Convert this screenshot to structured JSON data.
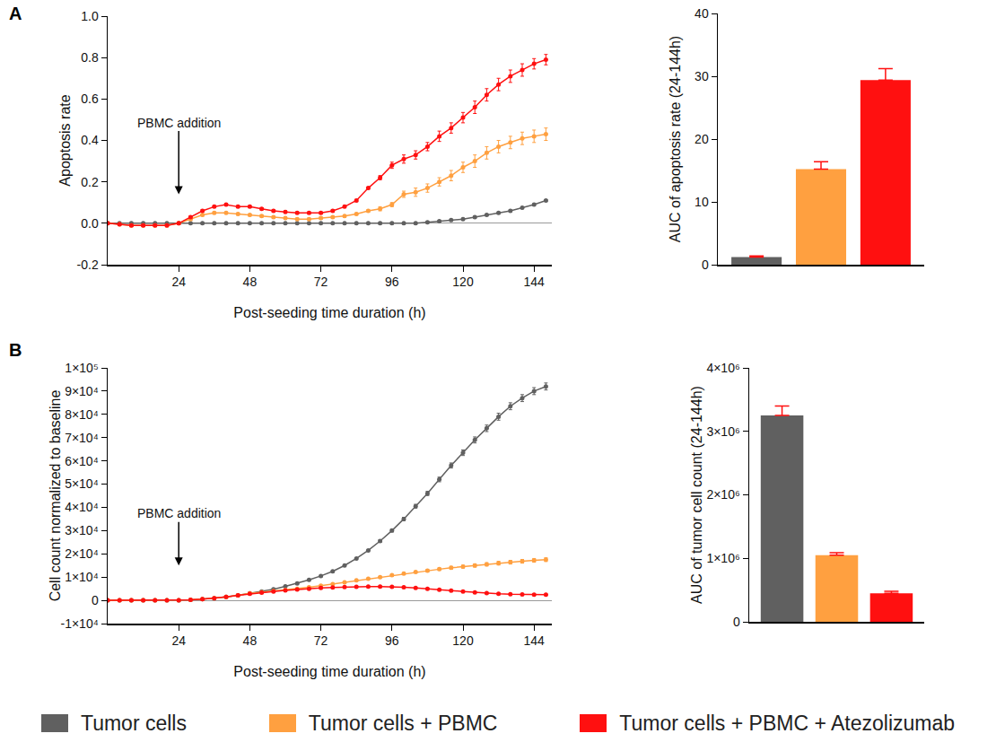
{
  "panels": [
    "A",
    "B"
  ],
  "chart_data": [
    {
      "type": "line",
      "marker": "circle",
      "line_style": "solid",
      "grid": false,
      "legend": "bottom",
      "x_label": "Post-seeding time duration (h)",
      "y_label": "Apoptosis rate",
      "xlim": [
        0,
        150
      ],
      "xticks": [
        24,
        48,
        72,
        96,
        120,
        144
      ],
      "ylim": [
        -0.2,
        1.0
      ],
      "yticks": [
        -0.2,
        {
          "value": 0,
          "label": "0.0"
        },
        0.2,
        0.4,
        0.6,
        0.8,
        {
          "value": 1,
          "label": "1.0"
        }
      ],
      "annotations": [
        {
          "text": "PBMC addition",
          "x": 24,
          "y": 0.14
        }
      ],
      "x": [
        0,
        4,
        8,
        12,
        16,
        20,
        24,
        28,
        32,
        36,
        40,
        44,
        48,
        52,
        56,
        60,
        64,
        68,
        72,
        76,
        80,
        84,
        88,
        92,
        96,
        100,
        104,
        108,
        112,
        116,
        120,
        124,
        128,
        132,
        136,
        140,
        144,
        148
      ],
      "series": [
        {
          "name": "Tumor cells",
          "color": "#606060",
          "values": [
            0,
            0,
            0,
            0,
            0,
            0,
            0,
            0,
            0,
            0,
            0,
            0,
            0,
            0,
            0,
            0,
            0,
            0,
            0,
            0,
            0,
            0,
            0,
            0,
            0,
            0,
            0,
            0.005,
            0.01,
            0.015,
            0.02,
            0.03,
            0.04,
            0.05,
            0.06,
            0.075,
            0.09,
            0.11
          ],
          "errors": [
            0.002,
            0.002,
            0.002,
            0.002,
            0.002,
            0.002,
            0.002,
            0.002,
            0.002,
            0.002,
            0.002,
            0.002,
            0.002,
            0.002,
            0.002,
            0.002,
            0.002,
            0.002,
            0.002,
            0.002,
            0.002,
            0.002,
            0.002,
            0.004,
            0.004,
            0.004,
            0.004,
            0.004,
            0.004,
            0.004,
            0.004,
            0.004,
            0.004,
            0.004,
            0.004,
            0.004,
            0.004,
            0.004
          ]
        },
        {
          "name": "Tumor cells + PBMC",
          "color": "#ffa040",
          "values": [
            0,
            -0.005,
            -0.01,
            -0.01,
            -0.01,
            -0.01,
            0,
            0.02,
            0.04,
            0.05,
            0.05,
            0.045,
            0.04,
            0.035,
            0.03,
            0.025,
            0.02,
            0.02,
            0.025,
            0.03,
            0.035,
            0.045,
            0.06,
            0.07,
            0.09,
            0.14,
            0.15,
            0.17,
            0.2,
            0.23,
            0.27,
            0.3,
            0.34,
            0.37,
            0.39,
            0.41,
            0.42,
            0.43
          ],
          "errors": [
            0.005,
            0.005,
            0.005,
            0.005,
            0.005,
            0.005,
            0.005,
            0.005,
            0.005,
            0.005,
            0.005,
            0.005,
            0.005,
            0.005,
            0.005,
            0.005,
            0.005,
            0.005,
            0.005,
            0.005,
            0.005,
            0.005,
            0.005,
            0.01,
            0.01,
            0.015,
            0.02,
            0.02,
            0.02,
            0.025,
            0.025,
            0.03,
            0.03,
            0.03,
            0.03,
            0.03,
            0.03,
            0.03
          ]
        },
        {
          "name": "Tumor cells + PBMC + Atezolizumab",
          "color": "#ff1010",
          "values": [
            0,
            -0.005,
            -0.01,
            -0.01,
            -0.01,
            -0.01,
            0,
            0.03,
            0.06,
            0.08,
            0.09,
            0.08,
            0.08,
            0.07,
            0.06,
            0.055,
            0.05,
            0.05,
            0.05,
            0.06,
            0.08,
            0.11,
            0.17,
            0.22,
            0.28,
            0.31,
            0.33,
            0.37,
            0.42,
            0.46,
            0.51,
            0.56,
            0.62,
            0.67,
            0.71,
            0.74,
            0.77,
            0.79
          ],
          "errors": [
            0.005,
            0.005,
            0.005,
            0.005,
            0.005,
            0.005,
            0.005,
            0.005,
            0.005,
            0.005,
            0.005,
            0.005,
            0.005,
            0.005,
            0.005,
            0.005,
            0.005,
            0.005,
            0.005,
            0.005,
            0.005,
            0.005,
            0.005,
            0.01,
            0.015,
            0.02,
            0.02,
            0.02,
            0.025,
            0.025,
            0.025,
            0.03,
            0.03,
            0.03,
            0.03,
            0.03,
            0.025,
            0.025
          ]
        }
      ]
    },
    {
      "type": "bar",
      "grid": false,
      "tick_labels": "y",
      "y_label": "AUC of apoptosis rate (24-144h)",
      "ylim": [
        0,
        40
      ],
      "yticks": [
        0,
        10,
        20,
        30,
        40
      ],
      "categories": [
        null,
        null,
        null
      ],
      "values": [
        1.2,
        15.2,
        29.4
      ],
      "errors": [
        0.2,
        1.2,
        1.8
      ],
      "colors": [
        "#606060",
        "#ffa040",
        "#ff1010"
      ]
    },
    {
      "type": "line",
      "marker": "circle",
      "line_style": "solid",
      "grid": false,
      "x_label": "Post-seeding time duration (h)",
      "y_label": "Cell count normalized to baseline",
      "xlim": [
        0,
        150
      ],
      "xticks": [
        24,
        48,
        72,
        96,
        120,
        144
      ],
      "ylim": [
        -10000,
        100000
      ],
      "yticks": [
        {
          "value": -10000,
          "label": "-1×10⁴"
        },
        0,
        {
          "value": 10000,
          "label": "1×10⁴"
        },
        {
          "value": 20000,
          "label": "2×10⁴"
        },
        {
          "value": 30000,
          "label": "3×10⁴"
        },
        {
          "value": 40000,
          "label": "4×10⁴"
        },
        {
          "value": 50000,
          "label": "5×10⁴"
        },
        {
          "value": 60000,
          "label": "6×10⁴"
        },
        {
          "value": 70000,
          "label": "7×10⁴"
        },
        {
          "value": 80000,
          "label": "8×10⁴"
        },
        {
          "value": 90000,
          "label": "9×10⁴"
        },
        {
          "value": 100000,
          "label": "1×10⁵"
        }
      ],
      "annotations": [
        {
          "text": "PBMC addition",
          "x": 24,
          "y": 15000
        }
      ],
      "x": [
        0,
        4,
        8,
        12,
        16,
        20,
        24,
        28,
        32,
        36,
        40,
        44,
        48,
        52,
        56,
        60,
        64,
        68,
        72,
        76,
        80,
        84,
        88,
        92,
        96,
        100,
        104,
        108,
        112,
        116,
        120,
        124,
        128,
        132,
        136,
        140,
        144,
        148
      ],
      "series": [
        {
          "name": "Tumor cells",
          "color": "#606060",
          "values": [
            0,
            0,
            0,
            0,
            0,
            0,
            0,
            200,
            500,
            900,
            1500,
            2200,
            3000,
            3800,
            4800,
            6000,
            7300,
            8800,
            10500,
            12500,
            15000,
            18000,
            21500,
            25500,
            30000,
            35000,
            40500,
            46000,
            52000,
            58000,
            63500,
            69000,
            74000,
            79000,
            83500,
            87000,
            90000,
            92000
          ],
          "errors": [
            200,
            200,
            200,
            200,
            200,
            200,
            200,
            200,
            200,
            200,
            200,
            200,
            200,
            200,
            200,
            200,
            200,
            200,
            200,
            200,
            200,
            200,
            200,
            500,
            600,
            700,
            800,
            900,
            1000,
            1100,
            1200,
            1300,
            1400,
            1500,
            1500,
            1500,
            1500,
            1500
          ]
        },
        {
          "name": "Tumor cells + PBMC",
          "color": "#ffa040",
          "values": [
            0,
            0,
            0,
            0,
            0,
            0,
            0,
            200,
            500,
            900,
            1500,
            2200,
            3000,
            3500,
            4000,
            4500,
            5000,
            5600,
            6300,
            7000,
            7800,
            8600,
            9300,
            10000,
            10800,
            11500,
            12200,
            12800,
            13400,
            14000,
            14500,
            15000,
            15500,
            16000,
            16400,
            16800,
            17200,
            17500
          ],
          "errors": [
            100,
            100,
            100,
            100,
            100,
            100,
            100,
            100,
            100,
            100,
            100,
            100,
            100,
            100,
            100,
            100,
            100,
            100,
            100,
            100,
            100,
            100,
            100,
            300,
            300,
            400,
            400,
            500,
            500,
            600,
            600,
            700,
            700,
            800,
            800,
            800,
            800,
            800
          ]
        },
        {
          "name": "Tumor cells + PBMC + Atezolizumab",
          "color": "#ff1010",
          "values": [
            0,
            0,
            0,
            0,
            0,
            0,
            0,
            200,
            500,
            900,
            1500,
            2200,
            2800,
            3300,
            3800,
            4300,
            4700,
            5000,
            5300,
            5500,
            5700,
            5800,
            5900,
            5900,
            5800,
            5600,
            5300,
            5000,
            4600,
            4200,
            3800,
            3400,
            3100,
            2800,
            2600,
            2500,
            2400,
            2400
          ],
          "errors": [
            100,
            100,
            100,
            100,
            100,
            100,
            100,
            100,
            100,
            100,
            100,
            100,
            100,
            100,
            100,
            100,
            100,
            100,
            100,
            100,
            100,
            100,
            100,
            200,
            200,
            200,
            200,
            200,
            200,
            200,
            200,
            200,
            200,
            200,
            200,
            200,
            200,
            200
          ]
        }
      ]
    },
    {
      "type": "bar",
      "grid": false,
      "tick_labels": "y",
      "y_label": "AUC of tumor cell count (24-144h)",
      "ylim": [
        0,
        4000000
      ],
      "yticks": [
        0,
        {
          "value": 1000000,
          "label": "1×10⁶"
        },
        {
          "value": 2000000,
          "label": "2×10⁶"
        },
        {
          "value": 3000000,
          "label": "3×10⁶"
        },
        {
          "value": 4000000,
          "label": "4×10⁶"
        }
      ],
      "categories": [
        null,
        null,
        null
      ],
      "values": [
        3250000,
        1050000,
        450000
      ],
      "errors": [
        150000,
        40000,
        30000
      ],
      "colors": [
        "#606060",
        "#ffa040",
        "#ff1010"
      ]
    }
  ]
}
